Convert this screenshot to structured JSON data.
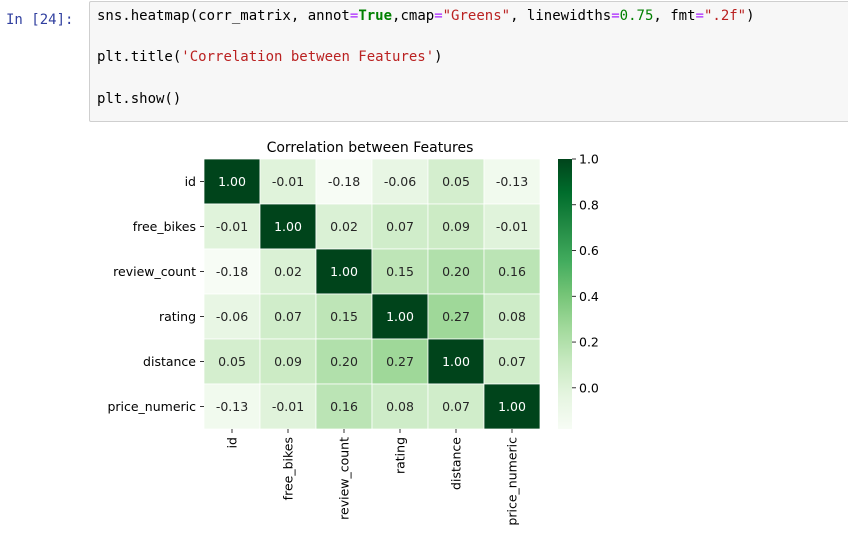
{
  "cell": {
    "prompt": "In [24]:",
    "code_lines": [
      [
        {
          "t": "sns.heatmap(corr_matrix, annot",
          "c": ""
        },
        {
          "t": "=",
          "c": "op"
        },
        {
          "t": "True",
          "c": "kw"
        },
        {
          "t": ",cmap",
          "c": ""
        },
        {
          "t": "=",
          "c": "op"
        },
        {
          "t": "\"Greens\"",
          "c": "str"
        },
        {
          "t": ", linewidths",
          "c": ""
        },
        {
          "t": "=",
          "c": "op"
        },
        {
          "t": "0.75",
          "c": "num"
        },
        {
          "t": ", fmt",
          "c": ""
        },
        {
          "t": "=",
          "c": "op"
        },
        {
          "t": "\".2f\"",
          "c": "str"
        },
        {
          "t": ")",
          "c": ""
        }
      ],
      [
        {
          "t": "plt.title(",
          "c": ""
        },
        {
          "t": "'Correlation between Features'",
          "c": "str"
        },
        {
          "t": ")",
          "c": ""
        }
      ],
      [
        {
          "t": "plt.show()",
          "c": ""
        }
      ]
    ]
  },
  "chart_data": {
    "type": "heatmap",
    "title": "Correlation between Features",
    "x_labels": [
      "id",
      "free_bikes",
      "review_count",
      "rating",
      "distance",
      "price_numeric"
    ],
    "y_labels": [
      "id",
      "free_bikes",
      "review_count",
      "rating",
      "distance",
      "price_numeric"
    ],
    "values": [
      [
        1.0,
        -0.01,
        -0.18,
        -0.06,
        0.05,
        -0.13
      ],
      [
        -0.01,
        1.0,
        0.02,
        0.07,
        0.09,
        -0.01
      ],
      [
        -0.18,
        0.02,
        1.0,
        0.15,
        0.2,
        0.16
      ],
      [
        -0.06,
        0.07,
        0.15,
        1.0,
        0.27,
        0.08
      ],
      [
        0.05,
        0.09,
        0.2,
        0.27,
        1.0,
        0.07
      ],
      [
        -0.13,
        -0.01,
        0.16,
        0.08,
        0.07,
        1.0
      ]
    ],
    "cmap": "Greens",
    "annot_format": ".2f",
    "colorbar": {
      "range": [
        -0.18,
        1.0
      ],
      "ticks": [
        1.0,
        0.8,
        0.6,
        0.4,
        0.2,
        0.0
      ],
      "tick_labels": [
        "1.0",
        "0.8",
        "0.6",
        "0.4",
        "0.2",
        "0.0"
      ]
    }
  }
}
